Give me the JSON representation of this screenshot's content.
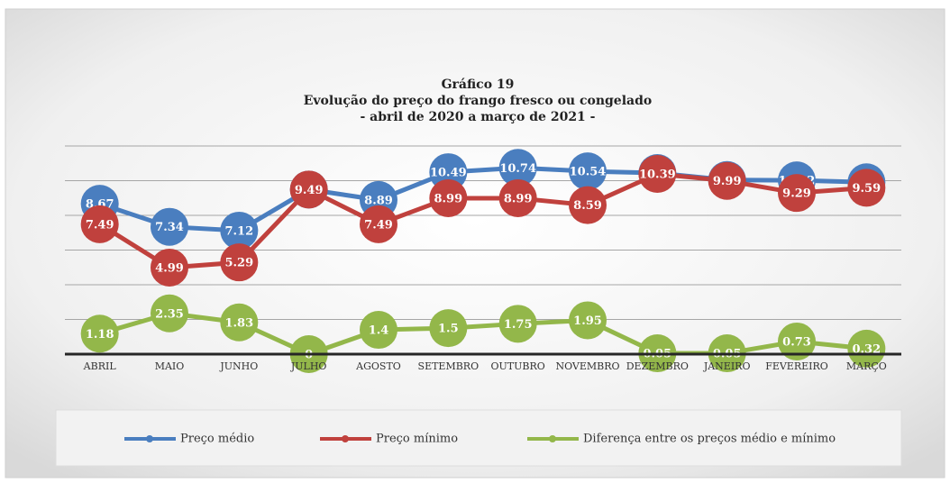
{
  "chart_data": {
    "type": "line",
    "title": "Gráfico 19",
    "subtitle": "Evolução do preço do frango fresco ou congelado",
    "subtitle2": "- abril de 2020 a março de 2021 -",
    "categories": [
      "ABRIL",
      "MAIO",
      "JUNHO",
      "JULHO",
      "AGOSTO",
      "SETEMBRO",
      "OUTUBRO",
      "NOVEMBRO",
      "DEZEMBRO",
      "JANEIRO",
      "FEVEREIRO",
      "MARÇO"
    ],
    "series": [
      {
        "name": "Preço médio",
        "color": "#4a7ebf",
        "values": [
          8.67,
          7.34,
          7.12,
          9.49,
          8.89,
          10.49,
          10.74,
          10.54,
          10.44,
          10.04,
          10.02,
          9.91
        ]
      },
      {
        "name": "Preço mínimo",
        "color": "#c0413d",
        "values": [
          7.49,
          4.99,
          5.29,
          9.49,
          7.49,
          8.99,
          8.99,
          8.59,
          10.39,
          9.99,
          9.29,
          9.59
        ]
      },
      {
        "name": "Diferença entre os preços médio e mínimo",
        "color": "#93b74a",
        "values": [
          1.18,
          2.35,
          1.83,
          0.0,
          1.4,
          1.5,
          1.75,
          1.95,
          0.05,
          0.05,
          0.73,
          0.32
        ]
      }
    ],
    "ylim": [
      0,
      12
    ],
    "yticks": [
      0,
      2,
      4,
      6,
      8,
      10,
      12
    ],
    "grid": true
  }
}
